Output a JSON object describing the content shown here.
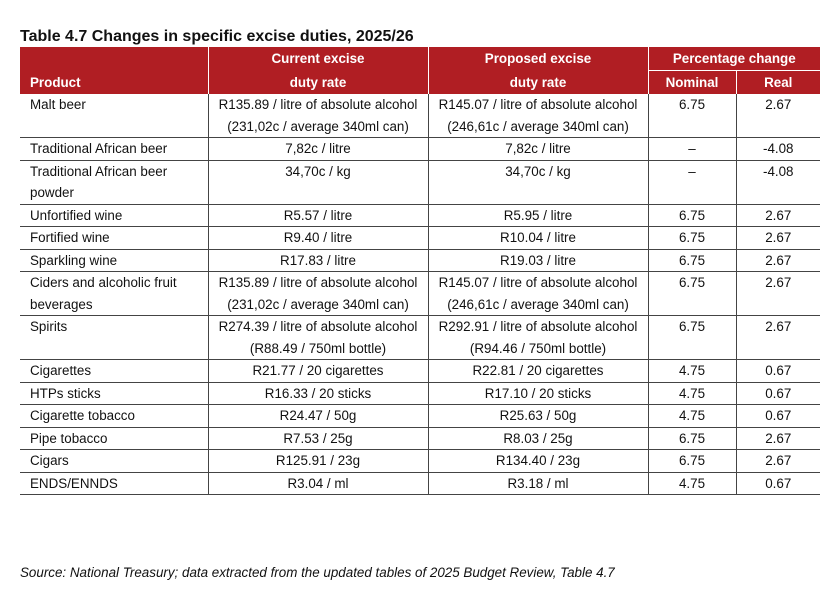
{
  "title": "Table 4.7  Changes in specific excise duties, 2025/26",
  "header": {
    "product": "Product",
    "current_line1": "Current excise",
    "current_line2": "duty rate",
    "proposed_line1": "Proposed excise",
    "proposed_line2": "duty rate",
    "pct_change": "Percentage  change",
    "nominal": "Nominal",
    "real": "Real"
  },
  "rows": [
    {
      "product": "Malt beer",
      "current": "R135.89 / litre of absolute alcohol (231,02c / average 340ml can)",
      "proposed": "R145.07 / litre of absolute alcohol (246,61c / average 340ml can)",
      "nominal": "6.75",
      "real": "2.67"
    },
    {
      "product": "Traditional African beer",
      "current": "7,82c / litre",
      "proposed": "7,82c / litre",
      "nominal": "–",
      "real": "-4.08"
    },
    {
      "product": "Traditional African beer powder",
      "current": "34,70c / kg",
      "proposed": "34,70c / kg",
      "nominal": "–",
      "real": "-4.08"
    },
    {
      "product": "Unfortified wine",
      "current": "R5.57 / litre",
      "proposed": "R5.95 / litre",
      "nominal": "6.75",
      "real": "2.67"
    },
    {
      "product": "Fortified wine",
      "current": "R9.40 / litre",
      "proposed": "R10.04 / litre",
      "nominal": "6.75",
      "real": "2.67"
    },
    {
      "product": "Sparkling wine",
      "current": "R17.83 / litre",
      "proposed": "R19.03 / litre",
      "nominal": "6.75",
      "real": "2.67"
    },
    {
      "product": "Ciders and alcoholic fruit beverages",
      "current": "R135.89 / litre of absolute alcohol (231,02c / average 340ml can)",
      "proposed": "R145.07 / litre of absolute alcohol (246,61c / average 340ml can)",
      "nominal": "6.75",
      "real": "2.67"
    },
    {
      "product": "Spirits",
      "current": "R274.39 / litre of absolute alcohol (R88.49 / 750ml bottle)",
      "proposed": "R292.91 / litre of absolute alcohol (R94.46 / 750ml bottle)",
      "nominal": "6.75",
      "real": "2.67"
    },
    {
      "product": "Cigarettes",
      "current": "R21.77 / 20 cigarettes",
      "proposed": "R22.81 / 20 cigarettes",
      "nominal": "4.75",
      "real": "0.67"
    },
    {
      "product": "HTPs sticks",
      "current": "R16.33 / 20 sticks",
      "proposed": "R17.10 / 20 sticks",
      "nominal": "4.75",
      "real": "0.67"
    },
    {
      "product": "Cigarette tobacco",
      "current": "R24.47 / 50g",
      "proposed": "R25.63 / 50g",
      "nominal": "4.75",
      "real": "0.67"
    },
    {
      "product": "Pipe tobacco",
      "current": "R7.53 / 25g",
      "proposed": "R8.03 / 25g",
      "nominal": "6.75",
      "real": "2.67"
    },
    {
      "product": "Cigars",
      "current": "R125.91 / 23g",
      "proposed": "R134.40 / 23g",
      "nominal": "6.75",
      "real": "2.67"
    },
    {
      "product": "ENDS/ENNDS",
      "current": "R3.04 / ml",
      "proposed": "R3.18 / ml",
      "nominal": "4.75",
      "real": "0.67"
    }
  ],
  "source": "Source: National Treasury; data extracted from the updated tables of 2025 Budget Review, Table 4.7",
  "colors": {
    "header_bg": "#b01e23",
    "header_text": "#ffffff",
    "rule": "#444444"
  }
}
